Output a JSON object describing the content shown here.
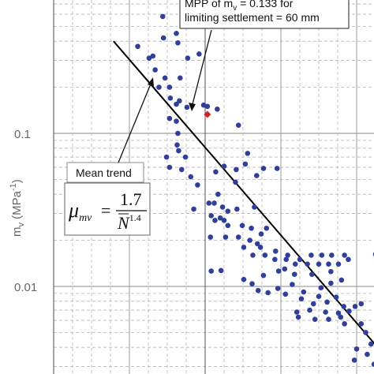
{
  "chart_data": {
    "type": "scatter",
    "title": "",
    "xlabel": "",
    "ylabel": "m",
    "ylabel_sub": "v",
    "ylabel_unit_open": " (MPa",
    "ylabel_unit_exp": "-1",
    "ylabel_unit_close": ")",
    "y_scale": "log",
    "ylim": [
      0.003,
      0.9
    ],
    "xlim": [
      0,
      45
    ],
    "y_ticks": [
      {
        "value": 0.1,
        "label": "0.1"
      },
      {
        "value": 0.01,
        "label": "0.01"
      }
    ],
    "x_major_gridlines": [
      0,
      10,
      20,
      30,
      40
    ],
    "x_minor_gridlines": [
      2.5,
      5,
      7.5,
      12.5,
      15,
      17.5,
      22.5,
      25,
      27.5,
      32.5,
      35,
      37.5,
      42.5
    ],
    "grid": true,
    "vertical_reference_x": 20,
    "colors": {
      "points": "#2f3f9a",
      "mpp_point": "#d42020",
      "trend_line": "#000000",
      "grid": "#b4b4b4",
      "frame": "#666666"
    },
    "series": [
      {
        "marker": "dot",
        "points": [
          [
            14.4,
            0.58
          ],
          [
            13.1,
            0.32
          ],
          [
            13.4,
            0.26
          ],
          [
            14.7,
            0.23
          ],
          [
            16.7,
            0.23
          ],
          [
            13.9,
            0.2
          ],
          [
            15.3,
            0.2
          ],
          [
            15.4,
            0.17
          ],
          [
            16.6,
            0.163
          ],
          [
            11.1,
            0.37
          ],
          [
            12.6,
            0.31
          ],
          [
            16.2,
            0.45
          ],
          [
            14.5,
            0.42
          ],
          [
            16.4,
            0.39
          ],
          [
            17.7,
            0.31
          ],
          [
            19.2,
            0.33
          ],
          [
            16.2,
            0.155
          ],
          [
            17.6,
            0.148
          ],
          [
            19.8,
            0.153
          ],
          [
            20.3,
            0.15
          ],
          [
            15.3,
            0.125
          ],
          [
            16.2,
            0.12
          ],
          [
            16.4,
            0.1
          ],
          [
            16.3,
            0.084
          ],
          [
            16.5,
            0.077
          ],
          [
            14.9,
            0.07
          ],
          [
            17.4,
            0.07
          ],
          [
            15.3,
            0.06
          ],
          [
            16.9,
            0.058
          ],
          [
            21.6,
            0.144
          ],
          [
            24.4,
            0.113
          ],
          [
            18.1,
            0.052
          ],
          [
            19.0,
            0.046
          ],
          [
            21.4,
            0.056
          ],
          [
            22.5,
            0.061
          ],
          [
            21.7,
            0.04
          ],
          [
            21.2,
            0.035
          ],
          [
            24.0,
            0.048
          ],
          [
            24.1,
            0.058
          ],
          [
            25.6,
            0.074
          ],
          [
            25.3,
            0.063
          ],
          [
            26.8,
            0.053
          ],
          [
            27.7,
            0.059
          ],
          [
            29.5,
            0.059
          ],
          [
            18.5,
            0.032
          ],
          [
            20.5,
            0.035
          ],
          [
            22.3,
            0.033
          ],
          [
            24.2,
            0.032
          ],
          [
            22.5,
            0.027
          ],
          [
            23.0,
            0.025
          ],
          [
            24.9,
            0.025
          ],
          [
            26.1,
            0.024
          ],
          [
            27.4,
            0.022
          ],
          [
            28.1,
            0.024
          ],
          [
            23.0,
            0.031
          ],
          [
            26.5,
            0.033
          ],
          [
            20.8,
            0.029
          ],
          [
            21.3,
            0.027
          ],
          [
            22.0,
            0.028
          ],
          [
            20.7,
            0.021
          ],
          [
            22.7,
            0.021
          ],
          [
            24.4,
            0.021
          ],
          [
            25.9,
            0.02
          ],
          [
            26.9,
            0.019
          ],
          [
            25.1,
            0.018
          ],
          [
            27.3,
            0.018
          ],
          [
            26.3,
            0.016
          ],
          [
            27.9,
            0.016
          ],
          [
            29.3,
            0.017
          ],
          [
            30.9,
            0.016
          ],
          [
            32.5,
            0.015
          ],
          [
            34.0,
            0.016
          ],
          [
            35.4,
            0.016
          ],
          [
            36.7,
            0.016
          ],
          [
            29.2,
            0.015
          ],
          [
            30.7,
            0.015
          ],
          [
            31.9,
            0.014
          ],
          [
            33.5,
            0.014
          ],
          [
            35.0,
            0.014
          ],
          [
            36.3,
            0.014
          ],
          [
            37.6,
            0.014
          ],
          [
            38.4,
            0.016
          ],
          [
            38.9,
            0.015
          ],
          [
            42.5,
            0.0162
          ],
          [
            30.5,
            0.013
          ],
          [
            31.8,
            0.012
          ],
          [
            34.1,
            0.012
          ],
          [
            36.6,
            0.0125
          ],
          [
            38.0,
            0.011
          ],
          [
            20.8,
            0.0126
          ],
          [
            22.1,
            0.0127
          ],
          [
            25.1,
            0.0111
          ],
          [
            27.7,
            0.0118
          ],
          [
            29.7,
            0.0126
          ],
          [
            26.2,
            0.0104
          ],
          [
            28.3,
            0.0091
          ],
          [
            29.6,
            0.0097
          ],
          [
            31.5,
            0.0103
          ],
          [
            33.0,
            0.0092
          ],
          [
            35.3,
            0.0098
          ],
          [
            36.6,
            0.0105
          ],
          [
            27.0,
            0.0094
          ],
          [
            30.6,
            0.0089
          ],
          [
            32.7,
            0.0083
          ],
          [
            35.0,
            0.0086
          ],
          [
            37.3,
            0.0085
          ],
          [
            34.3,
            0.0077
          ],
          [
            36.1,
            0.0079
          ],
          [
            38.3,
            0.0074
          ],
          [
            39.8,
            0.0074
          ],
          [
            32.1,
            0.0068
          ],
          [
            33.8,
            0.007
          ],
          [
            35.9,
            0.0068
          ],
          [
            37.6,
            0.0067
          ],
          [
            39.0,
            0.0069
          ],
          [
            40.6,
            0.0077
          ],
          [
            32.3,
            0.0063
          ],
          [
            34.5,
            0.0061
          ],
          [
            36.3,
            0.0061
          ],
          [
            37.9,
            0.0063
          ],
          [
            38.4,
            0.0057
          ],
          [
            40.6,
            0.0057
          ],
          [
            41.2,
            0.005
          ],
          [
            41.9,
            0.0042
          ],
          [
            40.0,
            0.0039
          ],
          [
            41.4,
            0.0036
          ],
          [
            39.7,
            0.0033
          ],
          [
            42.3,
            0.0031
          ]
        ]
      },
      {
        "name": "MPP of m_v",
        "marker": "diamond",
        "points": [
          [
            20.3,
            0.133
          ]
        ]
      }
    ],
    "trend_line": {
      "label": "Mean trend",
      "from": [
        7.9,
        0.4
      ],
      "to": [
        44.0,
        0.0034
      ]
    },
    "annotations": {
      "mpp_text_line1": "MPP of m",
      "mpp_text_line1_sub": "v",
      "mpp_text_line1_rest": " = 0.133 for",
      "mpp_text_line2": "limiting settlement = 60 mm",
      "mean_trend_text": "Mean trend",
      "equation": {
        "lhs": "μ",
        "lhs_sub": "mv",
        "equals": "=",
        "numerator": "1.7",
        "denominator_base": "N",
        "denominator_exp": "1.4"
      }
    }
  }
}
